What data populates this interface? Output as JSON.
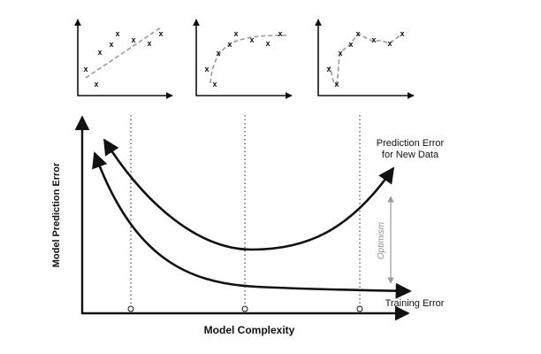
{
  "diagram": {
    "x_axis_label": "Model Complexity",
    "y_axis_label": "Model Prediction Error",
    "curve_labels": {
      "prediction_error_line1": "Prediction Error",
      "prediction_error_line2": "for New Data",
      "training_error": "Training Error"
    },
    "gap_label": "Optimism",
    "point_marker": "x",
    "colors": {
      "ink": "#111111",
      "fit_line": "#9a9a9a",
      "optimism_arrow": "#9a9a9a"
    }
  }
}
